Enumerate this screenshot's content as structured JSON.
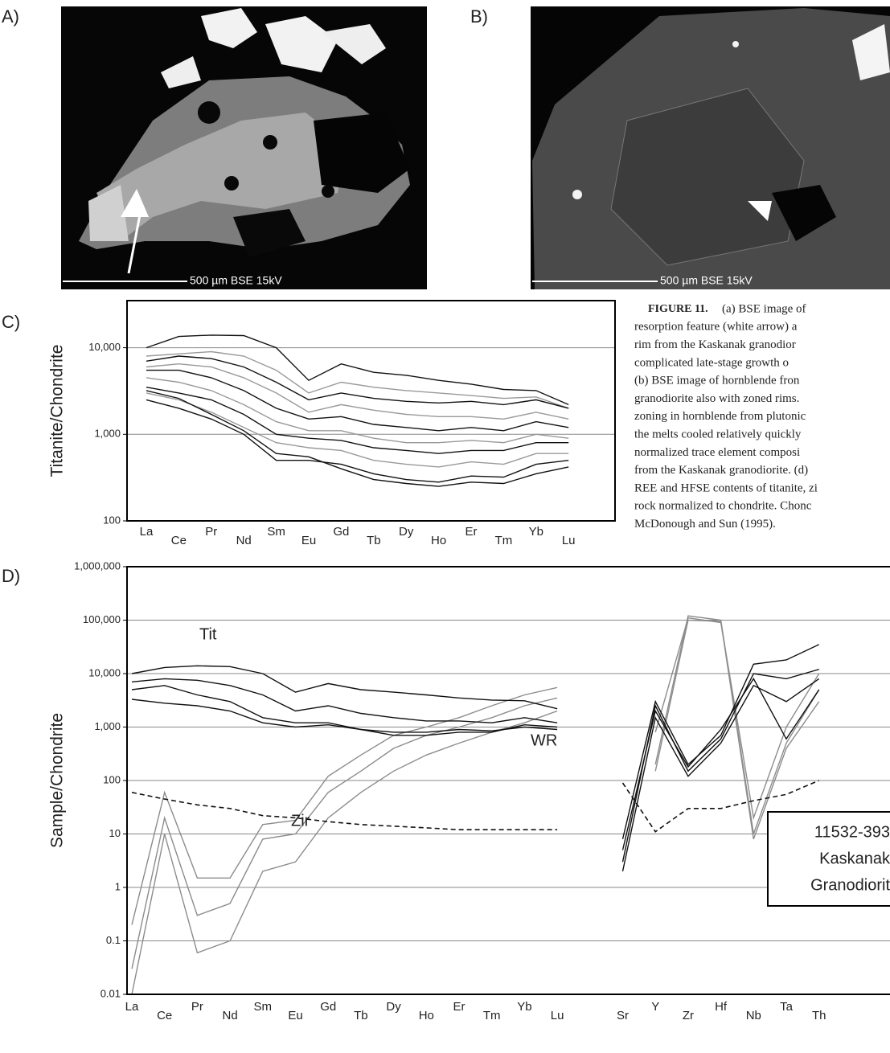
{
  "panel_labels": [
    "A)",
    "B)",
    "C)",
    "D)"
  ],
  "images": [
    {
      "scale_label": "500 µm BSE 15kV"
    },
    {
      "scale_label": "500 µm BSE 15kV"
    }
  ],
  "caption": {
    "label": "FIGURE 11.",
    "lines": [
      "(a) BSE image of",
      "resorption feature (white arrow) a",
      "rim from the Kaskanak granodior",
      "complicated late-stage growth o",
      "(b) BSE image of hornblende fron",
      "granodiorite also with zoned rims.",
      "zoning in hornblende from plutonic",
      "the melts cooled relatively quickly",
      "normalized trace element composi",
      "from the Kaskanak granodiorite. (d)",
      "REE and HFSE contents of titanite, zi",
      "rock normalized to chondrite. Chonc",
      "McDonough and Sun (1995)."
    ]
  },
  "chart_data": [
    {
      "type": "line",
      "y_label": "Titanite/Chondrite",
      "log_y": true,
      "grid": true,
      "categories": [
        "La",
        "Ce",
        "Pr",
        "Nd",
        "Sm",
        "Eu",
        "Gd",
        "Tb",
        "Dy",
        "Ho",
        "Er",
        "Tm",
        "Yb",
        "Lu"
      ],
      "ylim": [
        100,
        35000
      ],
      "yticks": [
        {
          "value": 10000,
          "label": "10,000"
        },
        {
          "value": 1000,
          "label": "1,000"
        },
        100
      ],
      "series": [
        {
          "color": "#999999",
          "values": [
            8000,
            8500,
            9000,
            8000,
            5500,
            3000,
            4000,
            3500,
            3200,
            3000,
            2800,
            2600,
            2700,
            2000
          ]
        },
        {
          "color": "#999999",
          "values": [
            6000,
            6500,
            6000,
            4500,
            3000,
            1800,
            2200,
            1900,
            1700,
            1600,
            1600,
            1500,
            1800,
            1500
          ]
        },
        {
          "color": "#999999",
          "values": [
            4500,
            4000,
            3200,
            2200,
            1400,
            1100,
            1100,
            900,
            800,
            800,
            850,
            800,
            1000,
            900
          ]
        },
        {
          "color": "#999999",
          "values": [
            3000,
            2500,
            1800,
            1200,
            800,
            700,
            650,
            500,
            450,
            420,
            480,
            450,
            600,
            600
          ]
        },
        {
          "color": "#111111",
          "values": [
            10000,
            13500,
            14000,
            13800,
            10000,
            4200,
            6500,
            5200,
            4800,
            4200,
            3800,
            3300,
            3200,
            2200
          ]
        },
        {
          "color": "#111111",
          "values": [
            7000,
            8000,
            7500,
            6000,
            4000,
            2500,
            3000,
            2600,
            2400,
            2300,
            2400,
            2200,
            2500,
            2000
          ]
        },
        {
          "color": "#111111",
          "values": [
            5500,
            5500,
            4500,
            3200,
            2000,
            1500,
            1600,
            1300,
            1200,
            1100,
            1200,
            1100,
            1400,
            1200
          ]
        },
        {
          "color": "#111111",
          "values": [
            3500,
            3000,
            2500,
            1700,
            1000,
            900,
            850,
            700,
            650,
            600,
            650,
            650,
            800,
            800
          ]
        },
        {
          "color": "#111111",
          "values": [
            3200,
            2600,
            1700,
            1100,
            600,
            550,
            400,
            300,
            270,
            250,
            280,
            270,
            350,
            420
          ]
        },
        {
          "color": "#111111",
          "values": [
            2500,
            2000,
            1500,
            1000,
            500,
            500,
            450,
            350,
            300,
            280,
            330,
            320,
            450,
            500
          ]
        }
      ]
    },
    {
      "type": "line",
      "y_label": "Sample/Chondrite",
      "log_y": true,
      "grid": true,
      "categories": [
        "La",
        "Ce",
        "Pr",
        "Nd",
        "Sm",
        "Eu",
        "Gd",
        "Tb",
        "Dy",
        "Ho",
        "Er",
        "Tm",
        "Yb",
        "Lu",
        null,
        "Sr",
        "Y",
        "Zr",
        "Hf",
        "Nb",
        "Ta",
        "Th"
      ],
      "ylim": [
        0.01,
        1000000
      ],
      "yticks": [
        {
          "value": 1000000,
          "label": "1,000,000"
        },
        {
          "value": 100000,
          "label": "100,000"
        },
        {
          "value": 10000,
          "label": "10,000"
        },
        {
          "value": 1000,
          "label": "1,000"
        },
        100,
        10,
        1,
        0.1,
        0.01
      ],
      "annotations": [
        "Tit",
        "WR",
        "Zir"
      ],
      "legend_box": [
        "11532-393",
        "Kaskanak",
        "Granodiorit"
      ],
      "series": [
        {
          "color": "#8c8c8c",
          "values": [
            0.2,
            60,
            1.5,
            1.5,
            15,
            18,
            120,
            300,
            700,
            1000,
            1500,
            2500,
            4000,
            5500,
            null,
            null,
            200,
            120000,
            100000,
            10,
            500,
            5000
          ]
        },
        {
          "color": "#8c8c8c",
          "values": [
            0.03,
            20,
            0.3,
            0.5,
            8,
            10,
            60,
            150,
            400,
            700,
            1000,
            1500,
            2500,
            3500,
            null,
            null,
            800,
            110000,
            90000,
            20,
            1000,
            10000
          ]
        },
        {
          "color": "#8c8c8c",
          "values": [
            0.01,
            10,
            0.06,
            0.1,
            2,
            3,
            20,
            60,
            150,
            300,
            500,
            800,
            1200,
            2000,
            null,
            null,
            150,
            100000,
            95000,
            8,
            400,
            3000
          ]
        },
        {
          "color": "#111111",
          "values": [
            10000,
            13000,
            14000,
            13500,
            10000,
            4500,
            6500,
            5000,
            4500,
            4000,
            3500,
            3200,
            3100,
            2200,
            null,
            8,
            3000,
            200,
            700,
            15000,
            18000,
            35000
          ]
        },
        {
          "color": "#111111",
          "values": [
            7000,
            8000,
            7500,
            6000,
            4000,
            2000,
            2500,
            1800,
            1500,
            1300,
            1300,
            1200,
            1500,
            1200,
            null,
            3,
            2500,
            150,
            600,
            10000,
            8000,
            12000
          ]
        },
        {
          "color": "#111111",
          "values": [
            5000,
            6000,
            4000,
            3000,
            1500,
            1200,
            1200,
            900,
            800,
            800,
            900,
            850,
            1000,
            900,
            null,
            2,
            1500,
            120,
            500,
            6000,
            3000,
            8000
          ]
        },
        {
          "color": "#111111",
          "values": [
            3300,
            2800,
            2500,
            2000,
            1200,
            1000,
            1100,
            900,
            700,
            700,
            800,
            800,
            1100,
            1000,
            null,
            5,
            2000,
            180,
            900,
            8000,
            600,
            5000
          ]
        },
        {
          "color": "#111111",
          "dash": true,
          "values": [
            60,
            45,
            35,
            30,
            22,
            20,
            17,
            15,
            14,
            13,
            12,
            12,
            12,
            12,
            null,
            90,
            11,
            30,
            30,
            42,
            55,
            100
          ]
        }
      ]
    }
  ]
}
